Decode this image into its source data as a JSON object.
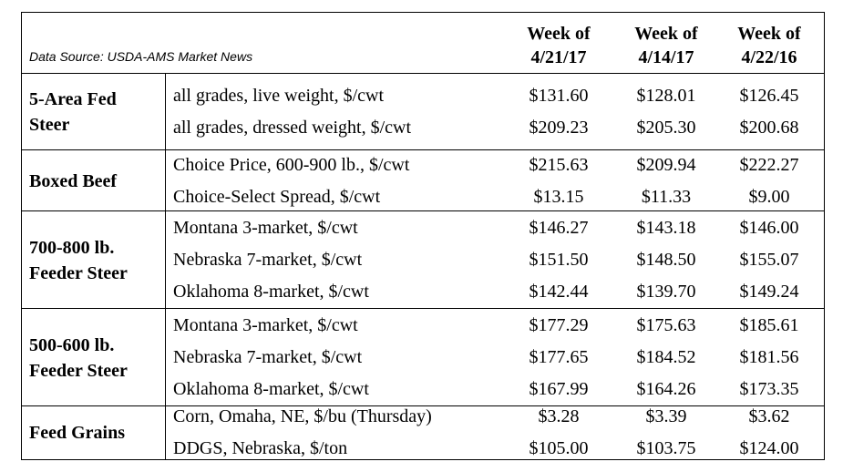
{
  "source": "Data Source: USDA-AMS Market News",
  "columns": [
    {
      "line1": "Week of",
      "line2": "4/21/17"
    },
    {
      "line1": "Week of",
      "line2": "4/14/17"
    },
    {
      "line1": "Week of",
      "line2": "4/22/16"
    }
  ],
  "groups": [
    {
      "label_lines": [
        "5-Area Fed",
        "Steer"
      ],
      "rows": [
        {
          "label": "all grades, live weight, $/cwt",
          "values": [
            "$131.60",
            "$128.01",
            "$126.45"
          ]
        },
        {
          "label": "all grades, dressed weight, $/cwt",
          "values": [
            "$209.23",
            "$205.30",
            "$200.68"
          ]
        }
      ]
    },
    {
      "label_lines": [
        "Boxed Beef"
      ],
      "rows": [
        {
          "label": "Choice Price, 600-900 lb., $/cwt",
          "values": [
            "$215.63",
            "$209.94",
            "$222.27"
          ]
        },
        {
          "label": "Choice-Select Spread, $/cwt",
          "values": [
            "$13.15",
            "$11.33",
            "$9.00"
          ]
        }
      ]
    },
    {
      "label_lines": [
        "700-800 lb.",
        "Feeder Steer"
      ],
      "rows": [
        {
          "label": "Montana 3-market, $/cwt",
          "values": [
            "$146.27",
            "$143.18",
            "$146.00"
          ]
        },
        {
          "label": "Nebraska 7-market, $/cwt",
          "values": [
            "$151.50",
            "$148.50",
            "$155.07"
          ]
        },
        {
          "label": "Oklahoma 8-market, $/cwt",
          "values": [
            "$142.44",
            "$139.70",
            "$149.24"
          ]
        }
      ]
    },
    {
      "label_lines": [
        "500-600 lb.",
        "Feeder Steer"
      ],
      "rows": [
        {
          "label": "Montana 3-market, $/cwt",
          "values": [
            "$177.29",
            "$175.63",
            "$185.61"
          ]
        },
        {
          "label": "Nebraska 7-market, $/cwt",
          "values": [
            "$177.65",
            "$184.52",
            "$181.56"
          ]
        },
        {
          "label": "Oklahoma 8-market, $/cwt",
          "values": [
            "$167.99",
            "$164.26",
            "$173.35"
          ]
        }
      ]
    },
    {
      "label_lines": [
        "Feed Grains"
      ],
      "rows": [
        {
          "label": "Corn, Omaha, NE, $/bu (Thursday)",
          "values": [
            "$3.28",
            "$3.39",
            "$3.62"
          ]
        },
        {
          "label": "DDGS, Nebraska, $/ton",
          "values": [
            "$105.00",
            "$103.75",
            "$124.00"
          ]
        }
      ]
    }
  ]
}
